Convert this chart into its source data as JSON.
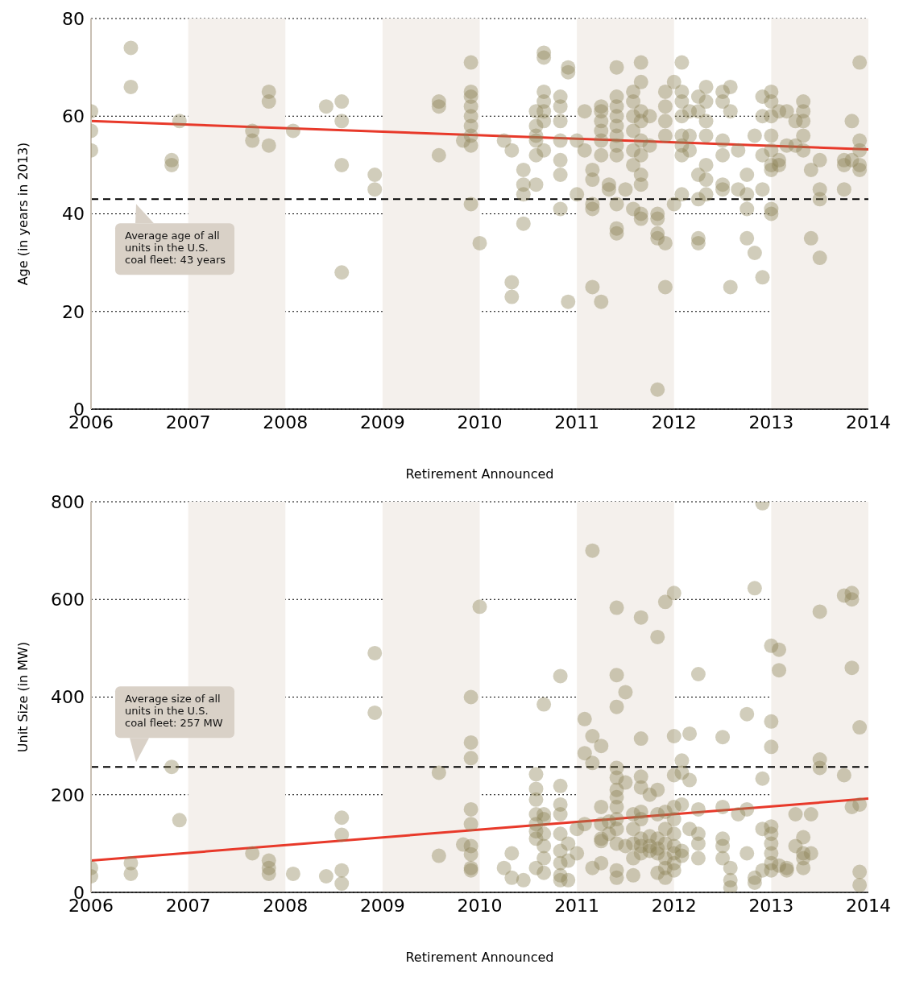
{
  "chart_data": [
    {
      "type": "scatter",
      "xlabel": "Retirement Announced",
      "ylabel": "Age (in years in 2013)",
      "xlim": [
        2006,
        2014
      ],
      "xticks": [
        2006,
        2007,
        2008,
        2009,
        2010,
        2011,
        2012,
        2013,
        2014
      ],
      "ylim": [
        0,
        80
      ],
      "yticks": [
        0,
        20,
        40,
        60,
        80
      ],
      "grid": "y",
      "bands": [
        {
          "axis": "x",
          "from": 2007,
          "to": 2008,
          "color": "#f4f0ec"
        },
        {
          "axis": "x",
          "from": 2009,
          "to": 2010,
          "color": "#f4f0ec"
        },
        {
          "axis": "x",
          "from": 2011,
          "to": 2012,
          "color": "#f4f0ec"
        },
        {
          "axis": "x",
          "from": 2013,
          "to": 2014,
          "color": "#f4f0ec"
        }
      ],
      "ref_lines": [
        {
          "axis": "y",
          "value": 43,
          "label": "Average age of all units in the U.S. coal fleet: 43 years",
          "color": "#000000",
          "line_style": "dashed"
        }
      ],
      "series": [
        {
          "marker": "circle",
          "color": "#8c8256",
          "x": [
            2006,
            2006,
            2006,
            2006.41,
            2006.41,
            2006.91,
            2006.83,
            2006.83,
            2007.66,
            2007.66,
            2007.83,
            2007.83,
            2007.83,
            2008.08,
            2008.42,
            2008.58,
            2008.58,
            2008.58,
            2008.58,
            2008.92,
            2008.92,
            2009.58,
            2009.58,
            2009.58,
            2009.91,
            2009.91,
            2009.91,
            2009.91,
            2009.91,
            2009.91,
            2009.91,
            2009.91,
            2009.83,
            2009.91,
            2010,
            2010.25,
            2010.33,
            2010.33,
            2010.33,
            2010.45,
            2010.45,
            2010.45,
            2010.45,
            2010.58,
            2010.58,
            2010.58,
            2010.58,
            2010.58,
            2010.58,
            2010.66,
            2010.66,
            2010.66,
            2010.66,
            2010.66,
            2010.66,
            2010.66,
            2010.83,
            2010.83,
            2010.83,
            2010.83,
            2010.83,
            2010.83,
            2010.83,
            2010.91,
            2010.91,
            2010.91,
            2011,
            2011,
            2011.08,
            2011.08,
            2011.16,
            2011.16,
            2011.16,
            2011.16,
            2011.16,
            2011.25,
            2011.25,
            2011.25,
            2011.25,
            2011.25,
            2011.25,
            2011.25,
            2011.33,
            2011.33,
            2011.41,
            2011.41,
            2011.41,
            2011.41,
            2011.41,
            2011.41,
            2011.41,
            2011.41,
            2011.41,
            2011.41,
            2011.41,
            2011.5,
            2011.58,
            2011.58,
            2011.58,
            2011.58,
            2011.58,
            2011.58,
            2011.58,
            2011.66,
            2011.66,
            2011.66,
            2011.66,
            2011.66,
            2011.66,
            2011.66,
            2011.66,
            2011.66,
            2011.66,
            2011.75,
            2011.75,
            2011.83,
            2011.83,
            2011.83,
            2011.83,
            2011.83,
            2011.91,
            2011.91,
            2011.91,
            2011.91,
            2011.91,
            2011.91,
            2012,
            2012,
            2012.08,
            2012.08,
            2012.08,
            2012.08,
            2012.08,
            2012.08,
            2012.08,
            2012.08,
            2012.16,
            2012.16,
            2012.16,
            2012.25,
            2012.25,
            2012.25,
            2012.25,
            2012.25,
            2012.25,
            2012.33,
            2012.33,
            2012.33,
            2012.33,
            2012.33,
            2012.33,
            2012.33,
            2012.5,
            2012.5,
            2012.5,
            2012.5,
            2012.5,
            2012.5,
            2012.58,
            2012.58,
            2012.58,
            2012.66,
            2012.66,
            2012.75,
            2012.75,
            2012.75,
            2012.75,
            2012.83,
            2012.83,
            2012.91,
            2012.91,
            2012.91,
            2012.91,
            2012.91,
            2013,
            2013,
            2013,
            2013,
            2013,
            2013,
            2013,
            2013,
            2013,
            2013.08,
            2013.08,
            2013.08,
            2013.16,
            2013.16,
            2013.25,
            2013.25,
            2013.33,
            2013.33,
            2013.33,
            2013.33,
            2013.33,
            2013.41,
            2013.41,
            2013.5,
            2013.5,
            2013.5,
            2013.5,
            2013.75,
            2013.75,
            2013.75,
            2013.83,
            2013.83,
            2013.91,
            2013.91,
            2013.91,
            2013.91,
            2013.91
          ],
          "values": [
            61,
            57,
            53,
            74,
            66,
            59,
            51,
            50,
            57,
            55,
            65,
            63,
            54,
            57,
            62,
            63,
            59,
            50,
            28,
            48,
            45,
            63,
            62,
            52,
            71,
            65,
            64,
            62,
            60,
            58,
            56,
            54,
            55,
            42,
            34,
            55,
            53,
            26,
            23,
            49,
            46,
            44,
            38,
            61,
            58,
            56,
            52,
            46,
            55,
            73,
            72,
            65,
            63,
            61,
            59,
            53,
            59,
            55,
            51,
            48,
            41,
            64,
            62,
            70,
            69,
            22,
            44,
            55,
            61,
            53,
            49,
            47,
            42,
            41,
            25,
            22,
            62,
            61,
            59,
            57,
            52,
            55,
            46,
            45,
            70,
            64,
            62,
            60,
            58,
            56,
            54,
            52,
            42,
            37,
            36,
            45,
            65,
            63,
            60,
            57,
            53,
            50,
            41,
            71,
            67,
            61,
            59,
            55,
            52,
            48,
            46,
            40,
            39,
            60,
            54,
            40,
            39,
            36,
            35,
            4,
            65,
            62,
            59,
            56,
            34,
            25,
            67,
            42,
            71,
            65,
            63,
            60,
            56,
            54,
            52,
            44,
            61,
            56,
            53,
            64,
            61,
            48,
            43,
            35,
            34,
            66,
            63,
            59,
            56,
            50,
            47,
            44,
            65,
            63,
            55,
            52,
            46,
            45,
            66,
            61,
            25,
            53,
            45,
            48,
            44,
            41,
            35,
            56,
            32,
            64,
            60,
            52,
            45,
            27,
            65,
            63,
            60,
            56,
            53,
            50,
            49,
            41,
            40,
            61,
            51,
            50,
            61,
            54,
            59,
            54,
            63,
            61,
            59,
            56,
            53,
            49,
            35,
            51,
            45,
            43,
            31,
            45,
            51,
            50,
            59,
            51,
            71,
            55,
            53,
            50,
            49
          ]
        },
        {
          "type": "line",
          "color": "#e8392a",
          "x": [
            2006,
            2014
          ],
          "values": [
            59,
            53.2
          ]
        }
      ]
    },
    {
      "type": "scatter",
      "xlabel": "Retirement Announced",
      "ylabel": "Unit Size (in MW)",
      "xlim": [
        2006,
        2014
      ],
      "xticks": [
        2006,
        2007,
        2008,
        2009,
        2010,
        2011,
        2012,
        2013,
        2014
      ],
      "ylim": [
        0,
        800
      ],
      "yticks": [
        0,
        200,
        400,
        600,
        800
      ],
      "grid": "y",
      "bands": [
        {
          "axis": "x",
          "from": 2007,
          "to": 2008,
          "color": "#f4f0ec"
        },
        {
          "axis": "x",
          "from": 2009,
          "to": 2010,
          "color": "#f4f0ec"
        },
        {
          "axis": "x",
          "from": 2011,
          "to": 2012,
          "color": "#f4f0ec"
        },
        {
          "axis": "x",
          "from": 2013,
          "to": 2014,
          "color": "#f4f0ec"
        }
      ],
      "ref_lines": [
        {
          "axis": "y",
          "value": 257,
          "label": "Average size of all units in the U.S. coal fleet: 257 MW",
          "color": "#000000",
          "line_style": "dashed"
        }
      ],
      "series": [
        {
          "marker": "circle",
          "color": "#8c8256",
          "x": [
            2006,
            2006,
            2006.41,
            2006.41,
            2006.83,
            2006.91,
            2007.66,
            2007.83,
            2007.83,
            2007.83,
            2008.08,
            2008.42,
            2008.58,
            2008.58,
            2008.58,
            2008.58,
            2008.92,
            2008.92,
            2009.58,
            2009.58,
            2009.83,
            2010,
            2009.91,
            2009.91,
            2009.91,
            2009.91,
            2009.91,
            2009.91,
            2009.91,
            2009.91,
            2009.91,
            2010.25,
            2010.33,
            2010.33,
            2010.45,
            2010.58,
            2010.58,
            2010.58,
            2010.58,
            2010.58,
            2010.58,
            2010.58,
            2010.58,
            2010.66,
            2010.66,
            2010.66,
            2010.66,
            2010.66,
            2010.66,
            2010.66,
            2010.83,
            2010.83,
            2010.83,
            2010.83,
            2010.83,
            2010.83,
            2010.83,
            2010.83,
            2010.83,
            2010.91,
            2010.91,
            2010.91,
            2011,
            2011,
            2011.08,
            2011.08,
            2011.08,
            2011.16,
            2011.16,
            2011.16,
            2011.16,
            2011.25,
            2011.25,
            2011.25,
            2011.25,
            2011.25,
            2011.25,
            2011.33,
            2011.33,
            2011.41,
            2011.41,
            2011.41,
            2011.41,
            2011.41,
            2011.41,
            2011.41,
            2011.41,
            2011.41,
            2011.41,
            2011.41,
            2011.41,
            2011.41,
            2011.5,
            2011.5,
            2011.5,
            2011.58,
            2011.58,
            2011.58,
            2011.58,
            2011.58,
            2011.66,
            2011.66,
            2011.66,
            2011.66,
            2011.66,
            2011.66,
            2011.66,
            2011.66,
            2011.66,
            2011.75,
            2011.75,
            2011.75,
            2011.75,
            2011.83,
            2011.83,
            2011.83,
            2011.83,
            2011.83,
            2011.83,
            2011.83,
            2011.91,
            2011.91,
            2011.91,
            2011.91,
            2011.91,
            2011.91,
            2011.91,
            2012,
            2012,
            2012,
            2012,
            2012,
            2012,
            2012,
            2012,
            2012,
            2012,
            2012.08,
            2012.08,
            2012.08,
            2012.08,
            2012.08,
            2012.16,
            2012.16,
            2012.16,
            2012.25,
            2012.25,
            2012.25,
            2012.25,
            2012.25,
            2012.5,
            2012.5,
            2012.5,
            2012.5,
            2012.5,
            2012.58,
            2012.58,
            2012.58,
            2012.66,
            2012.75,
            2012.75,
            2012.75,
            2012.83,
            2012.83,
            2012.83,
            2012.91,
            2012.91,
            2012.91,
            2012.91,
            2013,
            2013,
            2013,
            2013,
            2013,
            2013,
            2013,
            2013,
            2013,
            2013.08,
            2013.08,
            2013.08,
            2013.16,
            2013.16,
            2013.25,
            2013.25,
            2013.33,
            2013.33,
            2013.33,
            2013.33,
            2013.41,
            2013.41,
            2013.5,
            2013.5,
            2013.5,
            2013.75,
            2013.75,
            2013.83,
            2013.83,
            2013.83,
            2013.83,
            2013.91,
            2013.91,
            2013.91,
            2013.91
          ],
          "values": [
            50,
            33,
            60,
            38,
            257,
            148,
            80,
            65,
            50,
            38,
            38,
            33,
            153,
            118,
            45,
            18,
            490,
            368,
            245,
            75,
            98,
            585,
            400,
            307,
            275,
            170,
            140,
            95,
            78,
            50,
            45,
            50,
            80,
            30,
            25,
            242,
            212,
            190,
            160,
            140,
            125,
            110,
            50,
            385,
            160,
            150,
            120,
            95,
            70,
            40,
            443,
            218,
            180,
            160,
            120,
            85,
            60,
            35,
            25,
            25,
            65,
            100,
            130,
            80,
            355,
            285,
            140,
            700,
            320,
            265,
            50,
            300,
            175,
            140,
            110,
            105,
            60,
            145,
            120,
            583,
            445,
            380,
            255,
            235,
            210,
            195,
            175,
            150,
            130,
            100,
            45,
            30,
            410,
            225,
            95,
            160,
            130,
            100,
            70,
            35,
            563,
            315,
            237,
            215,
            165,
            150,
            110,
            95,
            80,
            200,
            115,
            95,
            85,
            523,
            210,
            160,
            110,
            90,
            80,
            40,
            595,
            30,
            50,
            70,
            100,
            130,
            165,
            613,
            320,
            240,
            175,
            150,
            120,
            95,
            80,
            60,
            45,
            270,
            245,
            180,
            85,
            75,
            325,
            230,
            130,
            447,
            170,
            120,
            100,
            70,
            318,
            175,
            110,
            95,
            70,
            50,
            25,
            10,
            160,
            365,
            170,
            80,
            623,
            30,
            20,
            797,
            233,
            130,
            45,
            505,
            350,
            298,
            135,
            120,
            100,
            80,
            60,
            45,
            497,
            455,
            55,
            50,
            45,
            160,
            95,
            113,
            80,
            70,
            50,
            160,
            80,
            575,
            272,
            255,
            608,
            240,
            613,
            600,
            460,
            175,
            338,
            180,
            42,
            15
          ]
        },
        {
          "type": "line",
          "color": "#e8392a",
          "x": [
            2006,
            2014
          ],
          "values": [
            65,
            192
          ]
        }
      ]
    }
  ]
}
